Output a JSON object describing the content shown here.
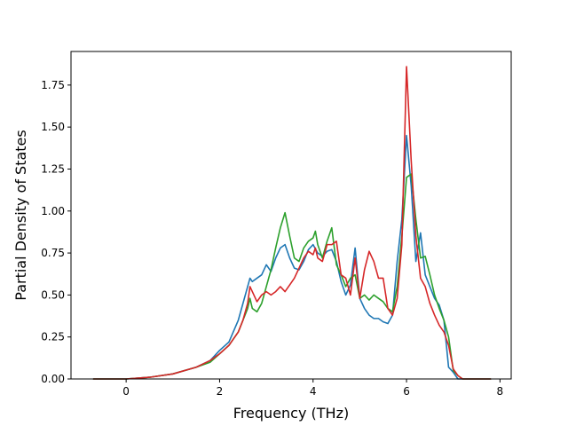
{
  "chart_data": {
    "type": "line",
    "title": "",
    "xlabel": "Frequency (THz)",
    "ylabel": "Partial Density of States",
    "xlim": [
      -1.18,
      8.24
    ],
    "ylim": [
      0.0,
      1.95
    ],
    "xticks": [
      0,
      2,
      4,
      6,
      8
    ],
    "xtick_labels": [
      "0",
      "2",
      "4",
      "6",
      "8"
    ],
    "yticks": [
      0.0,
      0.25,
      0.5,
      0.75,
      1.0,
      1.25,
      1.5,
      1.75
    ],
    "ytick_labels": [
      "0.00",
      "0.25",
      "0.50",
      "0.75",
      "1.00",
      "1.25",
      "1.50",
      "1.75"
    ],
    "grid": false,
    "legend": "none",
    "series": [
      {
        "color": "#1f77b4",
        "x": [
          -0.7,
          0.0,
          0.5,
          1.0,
          1.5,
          1.8,
          2.0,
          2.2,
          2.4,
          2.5,
          2.6,
          2.65,
          2.7,
          2.8,
          2.9,
          3.0,
          3.1,
          3.2,
          3.3,
          3.4,
          3.5,
          3.6,
          3.7,
          3.8,
          3.9,
          4.0,
          4.1,
          4.2,
          4.3,
          4.4,
          4.5,
          4.6,
          4.7,
          4.8,
          4.9,
          5.0,
          5.1,
          5.2,
          5.3,
          5.4,
          5.5,
          5.6,
          5.7,
          5.8,
          5.9,
          6.0,
          6.1,
          6.2,
          6.3,
          6.4,
          6.5,
          6.6,
          6.7,
          6.8,
          6.9,
          7.0,
          7.1,
          7.2,
          7.8
        ],
        "y": [
          0.0,
          0.0,
          0.01,
          0.03,
          0.07,
          0.11,
          0.17,
          0.22,
          0.35,
          0.45,
          0.55,
          0.6,
          0.58,
          0.6,
          0.62,
          0.68,
          0.64,
          0.72,
          0.78,
          0.8,
          0.72,
          0.66,
          0.65,
          0.7,
          0.77,
          0.8,
          0.75,
          0.73,
          0.76,
          0.77,
          0.7,
          0.58,
          0.5,
          0.56,
          0.78,
          0.48,
          0.42,
          0.38,
          0.36,
          0.36,
          0.34,
          0.33,
          0.38,
          0.7,
          0.95,
          1.45,
          1.15,
          0.7,
          0.87,
          0.62,
          0.55,
          0.48,
          0.44,
          0.35,
          0.07,
          0.04,
          0.0,
          0.0,
          0.0
        ]
      },
      {
        "color": "#2ca02c",
        "x": [
          -0.7,
          0.0,
          0.5,
          1.0,
          1.5,
          1.8,
          2.0,
          2.2,
          2.4,
          2.5,
          2.6,
          2.65,
          2.7,
          2.8,
          2.9,
          3.0,
          3.1,
          3.2,
          3.3,
          3.4,
          3.5,
          3.6,
          3.7,
          3.8,
          3.9,
          4.0,
          4.05,
          4.1,
          4.2,
          4.3,
          4.4,
          4.5,
          4.6,
          4.7,
          4.8,
          4.9,
          5.0,
          5.1,
          5.2,
          5.3,
          5.4,
          5.5,
          5.6,
          5.7,
          5.8,
          5.9,
          6.0,
          6.1,
          6.2,
          6.3,
          6.4,
          6.5,
          6.6,
          6.7,
          6.8,
          6.9,
          7.0,
          7.1,
          7.2,
          7.8
        ],
        "y": [
          0.0,
          0.0,
          0.01,
          0.03,
          0.07,
          0.1,
          0.15,
          0.2,
          0.28,
          0.35,
          0.42,
          0.48,
          0.42,
          0.4,
          0.45,
          0.55,
          0.65,
          0.78,
          0.9,
          0.99,
          0.85,
          0.72,
          0.7,
          0.78,
          0.82,
          0.84,
          0.88,
          0.8,
          0.72,
          0.82,
          0.9,
          0.68,
          0.62,
          0.55,
          0.6,
          0.62,
          0.48,
          0.5,
          0.47,
          0.5,
          0.48,
          0.46,
          0.42,
          0.4,
          0.55,
          0.85,
          1.2,
          1.22,
          0.95,
          0.72,
          0.73,
          0.62,
          0.5,
          0.42,
          0.35,
          0.25,
          0.05,
          0.02,
          0.0,
          0.0
        ]
      },
      {
        "color": "#d62728",
        "x": [
          -0.7,
          0.0,
          0.5,
          1.0,
          1.5,
          1.8,
          2.0,
          2.2,
          2.4,
          2.5,
          2.6,
          2.65,
          2.7,
          2.8,
          2.9,
          3.0,
          3.1,
          3.2,
          3.3,
          3.4,
          3.5,
          3.6,
          3.7,
          3.8,
          3.9,
          4.0,
          4.05,
          4.1,
          4.2,
          4.3,
          4.4,
          4.5,
          4.6,
          4.7,
          4.8,
          4.9,
          5.0,
          5.1,
          5.2,
          5.3,
          5.4,
          5.5,
          5.6,
          5.7,
          5.8,
          5.9,
          6.0,
          6.1,
          6.2,
          6.3,
          6.4,
          6.5,
          6.6,
          6.7,
          6.8,
          6.9,
          7.0,
          7.1,
          7.2,
          7.8
        ],
        "y": [
          0.0,
          0.0,
          0.01,
          0.03,
          0.07,
          0.11,
          0.15,
          0.2,
          0.28,
          0.35,
          0.45,
          0.55,
          0.52,
          0.46,
          0.5,
          0.52,
          0.5,
          0.52,
          0.55,
          0.52,
          0.56,
          0.6,
          0.66,
          0.72,
          0.76,
          0.74,
          0.78,
          0.72,
          0.7,
          0.8,
          0.8,
          0.82,
          0.62,
          0.6,
          0.5,
          0.72,
          0.48,
          0.65,
          0.76,
          0.7,
          0.6,
          0.6,
          0.42,
          0.38,
          0.48,
          0.8,
          1.86,
          1.3,
          0.85,
          0.6,
          0.55,
          0.45,
          0.38,
          0.32,
          0.28,
          0.2,
          0.06,
          0.02,
          0.0,
          0.0
        ]
      }
    ]
  }
}
